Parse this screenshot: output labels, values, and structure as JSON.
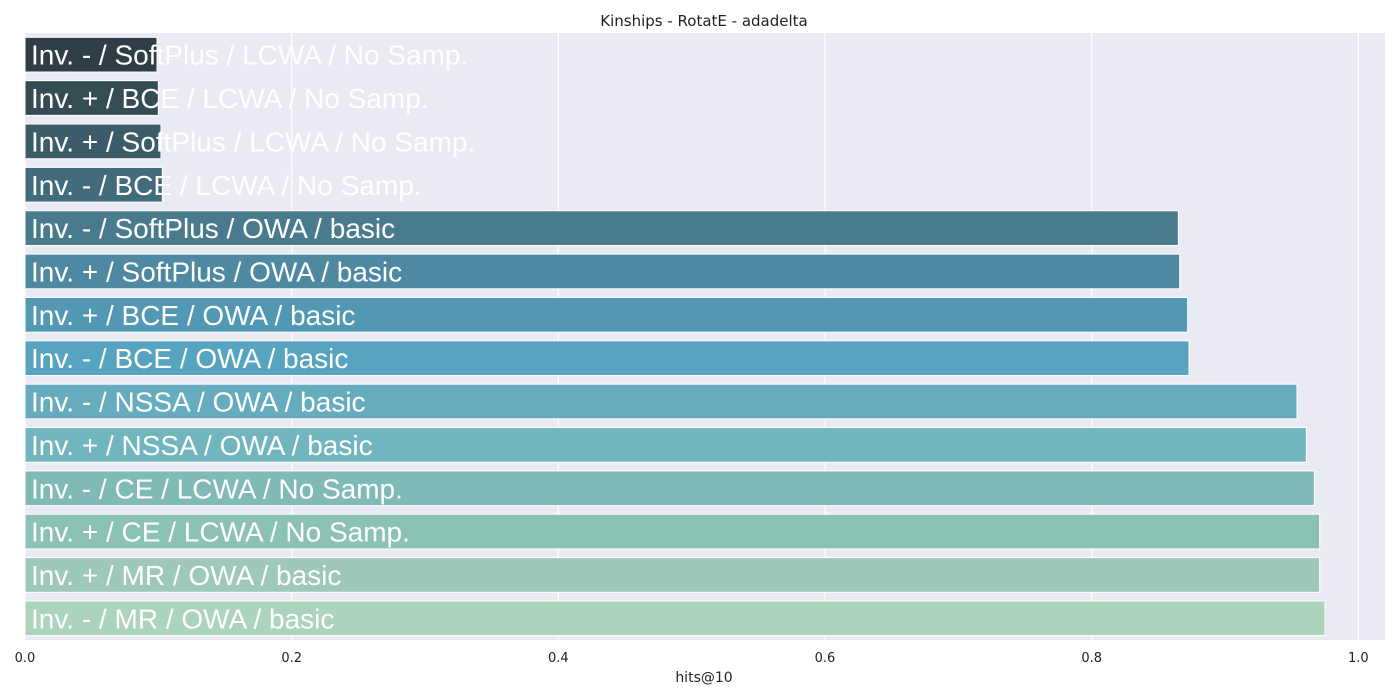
{
  "chart_data": {
    "type": "bar",
    "orientation": "horizontal",
    "title": "Kinships - RotatE - adadelta",
    "xlabel": "hits@10",
    "ylabel": "",
    "xlim": [
      0.0,
      1.02
    ],
    "xticks": [
      "0.0",
      "0.2",
      "0.4",
      "0.6",
      "0.8",
      "1.0"
    ],
    "grid": true,
    "categories": [
      "Inv. - / SoftPlus / LCWA / No Samp.",
      "Inv. + / BCE / LCWA / No Samp.",
      "Inv. + / SoftPlus / LCWA / No Samp.",
      "Inv. - / BCE / LCWA / No Samp.",
      "Inv. - / SoftPlus / OWA / basic",
      "Inv. + / SoftPlus / OWA / basic",
      "Inv. + / BCE / OWA / basic",
      "Inv. - / BCE / OWA / basic",
      "Inv. - / NSSA / OWA / basic",
      "Inv. + / NSSA / OWA / basic",
      "Inv. - / CE / LCWA / No Samp.",
      "Inv. + / CE / LCWA / No Samp.",
      "Inv. + / MR / OWA / basic",
      "Inv. - / MR / OWA / basic"
    ],
    "values": [
      0.099,
      0.1,
      0.102,
      0.103,
      0.865,
      0.866,
      0.872,
      0.873,
      0.954,
      0.961,
      0.967,
      0.971,
      0.971,
      0.975
    ],
    "colors": [
      "#2f3e46",
      "#364c55",
      "#3c5c6a",
      "#426b7b",
      "#4a7b8d",
      "#4e88a1",
      "#5298b3",
      "#57a4c0",
      "#67acbe",
      "#71b5be",
      "#7fbab7",
      "#8cc1b5",
      "#9ec9b9",
      "#acd3bb"
    ],
    "style": {
      "background": "#eaeaf2",
      "grid_color": "#ffffff",
      "text_color": "#222222",
      "label_color": "#ffffff"
    }
  }
}
